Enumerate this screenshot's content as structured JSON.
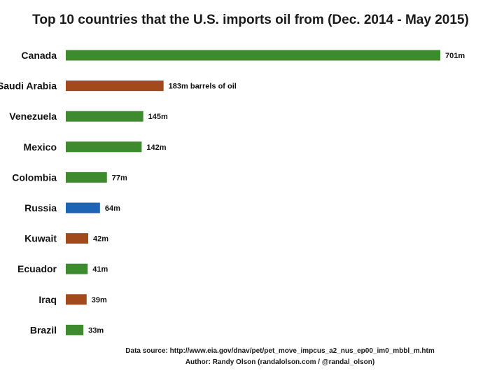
{
  "chart_data": {
    "type": "bar",
    "orientation": "horizontal",
    "title": "Top 10 countries that the U.S. imports oil from (Dec. 2014 - May 2015)",
    "xlabel": "",
    "ylabel": "",
    "unit": "million barrels of oil",
    "xlim": [
      0,
      701
    ],
    "grid": false,
    "categories": [
      "Canada",
      "Saudi Arabia",
      "Venezuela",
      "Mexico",
      "Colombia",
      "Russia",
      "Kuwait",
      "Ecuador",
      "Iraq",
      "Brazil"
    ],
    "values": [
      701,
      183,
      145,
      142,
      77,
      64,
      42,
      41,
      39,
      33
    ],
    "value_labels": [
      "701m",
      "183m barrels of oil",
      "145m",
      "142m",
      "77m",
      "64m",
      "42m",
      "41m",
      "39m",
      "33m"
    ],
    "bar_colors": [
      "#3e8a2e",
      "#a24a1c",
      "#3e8a2e",
      "#3e8a2e",
      "#3e8a2e",
      "#1f63b5",
      "#a24a1c",
      "#3e8a2e",
      "#a24a1c",
      "#3e8a2e"
    ]
  },
  "footer": {
    "source": "Data source: http://www.eia.gov/dnav/pet/pet_move_impcus_a2_nus_ep00_im0_mbbl_m.htm",
    "author": "Author: Randy Olson (randalolson.com / @randal_olson)"
  }
}
